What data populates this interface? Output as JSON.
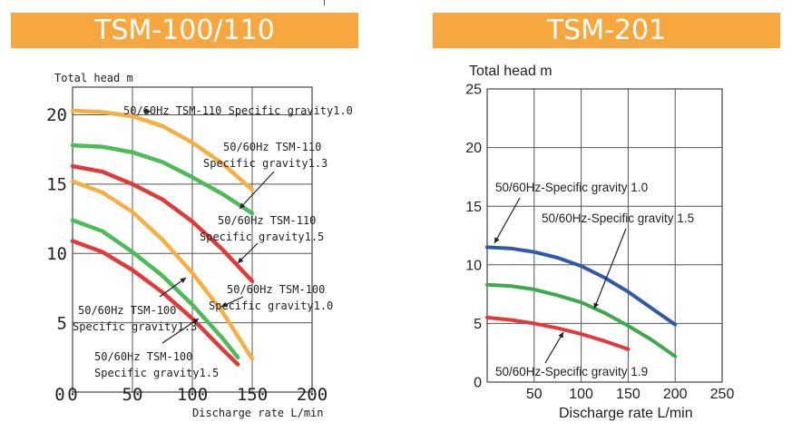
{
  "panels": [
    {
      "id": "left",
      "banner": "TSM-100/110",
      "chart_data": {
        "type": "line",
        "ylabel": "Total head m",
        "xlabel": "Discharge rate L/min",
        "xlim": [
          0,
          200
        ],
        "ylim": [
          0,
          22
        ],
        "xticks": [
          "0",
          "50",
          "100",
          "150",
          "200"
        ],
        "yticks": [
          "5",
          "10",
          "15",
          "20"
        ],
        "grid": true,
        "series": [
          {
            "color": "#f5b041",
            "x": [
              0,
              25,
              50,
              75,
              100,
              125,
              150
            ],
            "y": [
              20.3,
              20.2,
              19.9,
              19.2,
              18.0,
              16.5,
              14.6
            ]
          },
          {
            "color": "#4cbb58",
            "x": [
              0,
              25,
              50,
              75,
              100,
              125,
              150
            ],
            "y": [
              17.8,
              17.7,
              17.3,
              16.6,
              15.5,
              14.3,
              12.9
            ]
          },
          {
            "color": "#e03a3a",
            "x": [
              0,
              25,
              50,
              75,
              100,
              125,
              150
            ],
            "y": [
              16.3,
              15.9,
              15.0,
              13.9,
              12.3,
              10.3,
              8.0
            ]
          },
          {
            "color": "#f5b041",
            "x": [
              0,
              25,
              50,
              75,
              100,
              125,
              150
            ],
            "y": [
              15.2,
              14.4,
              13.0,
              11.0,
              8.6,
              5.8,
              2.4
            ]
          },
          {
            "color": "#4cbb58",
            "x": [
              0,
              25,
              50,
              75,
              100,
              125,
              138
            ],
            "y": [
              12.4,
              11.6,
              10.1,
              8.4,
              6.3,
              3.9,
              2.5
            ]
          },
          {
            "color": "#e03a3a",
            "x": [
              0,
              25,
              50,
              75,
              100,
              125,
              138
            ],
            "y": [
              10.9,
              10.1,
              8.8,
              7.2,
              5.3,
              3.1,
              2.0
            ]
          }
        ],
        "annotations": [
          {
            "lines": [
              "50/60Hz TSM-110 Specific gravity1.0"
            ]
          },
          {
            "lines": [
              "50/60Hz TSM-110",
              "Specific gravity1.3"
            ]
          },
          {
            "lines": [
              "50/60Hz TSM-110",
              "Specific gravity1.5"
            ]
          },
          {
            "lines": [
              "50/60Hz TSM-100",
              "Specific gravity1.0"
            ]
          },
          {
            "lines": [
              "50/60Hz TSM-100",
              "Specific gravity1.3"
            ]
          },
          {
            "lines": [
              "50/60Hz TSM-100",
              "Specific gravity1.5"
            ]
          }
        ]
      }
    },
    {
      "id": "right",
      "banner": "TSM-201",
      "chart_data": {
        "type": "line",
        "ylabel": "Total head m",
        "xlabel": "Discharge rate L/min",
        "xlim": [
          0,
          250
        ],
        "ylim": [
          0,
          25
        ],
        "xticks": [
          "50",
          "100",
          "150",
          "200",
          "250"
        ],
        "yticks": [
          "0",
          "5",
          "10",
          "15",
          "20",
          "25"
        ],
        "grid": true,
        "series": [
          {
            "color": "#2f5aa8",
            "x": [
              0,
              25,
              50,
              75,
              100,
              125,
              150,
              175,
              200
            ],
            "y": [
              11.5,
              11.4,
              11.1,
              10.6,
              9.9,
              8.9,
              7.7,
              6.3,
              4.9
            ]
          },
          {
            "color": "#3daa4a",
            "x": [
              0,
              25,
              50,
              75,
              100,
              125,
              150,
              175,
              200
            ],
            "y": [
              8.3,
              8.2,
              7.9,
              7.4,
              6.8,
              5.9,
              4.8,
              3.6,
              2.2
            ]
          },
          {
            "color": "#e03a3a",
            "x": [
              0,
              25,
              50,
              75,
              100,
              125,
              150
            ],
            "y": [
              5.5,
              5.3,
              5.0,
              4.6,
              4.1,
              3.5,
              2.8
            ]
          }
        ],
        "annotations": [
          {
            "lines": [
              "50/60Hz-Specific gravity 1.0"
            ]
          },
          {
            "lines": [
              "50/60Hz-Specific gravity 1.5"
            ]
          },
          {
            "lines": [
              "50/60Hz-Specific gravity 1.9"
            ]
          }
        ]
      }
    }
  ]
}
